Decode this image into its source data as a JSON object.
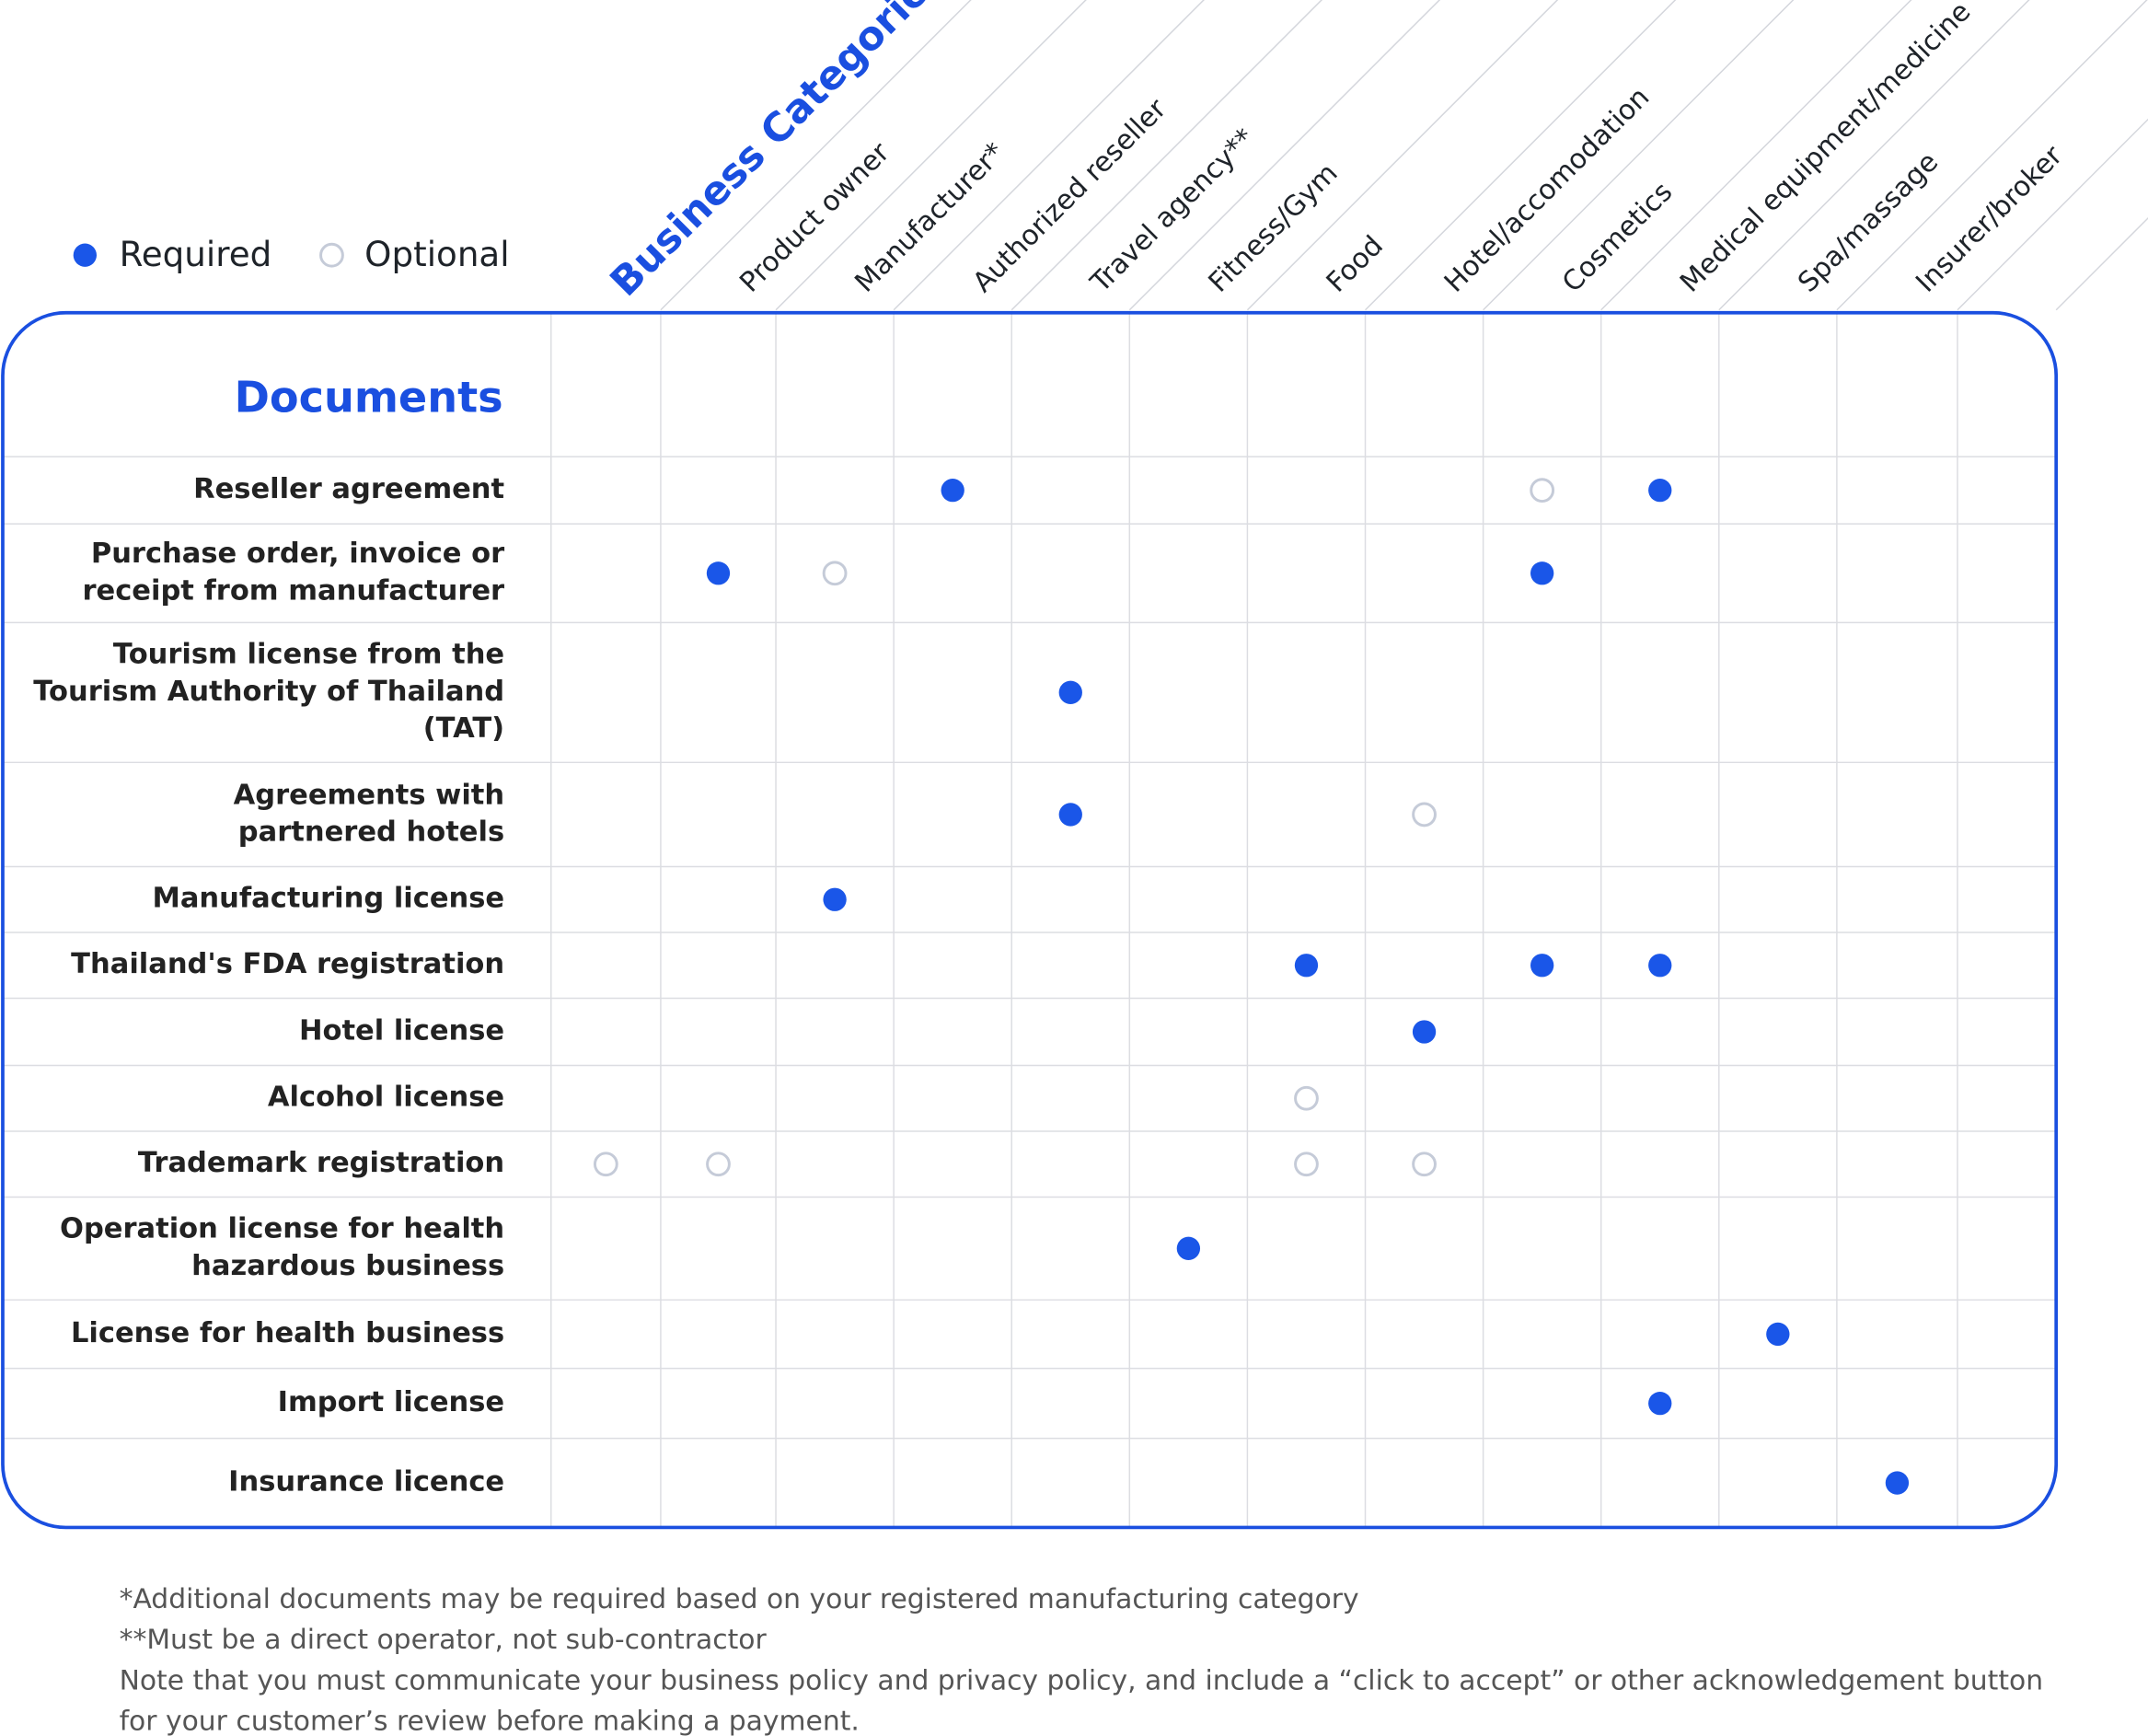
{
  "legend": {
    "required": "Required",
    "optional": "Optional"
  },
  "header": "Business Categories",
  "categories": [
    null,
    "Product owner",
    "Manufacturer*",
    "Authorized reseller",
    "Travel agency**",
    "Fitness/Gym",
    "Food",
    "Hotel/accomodation",
    "Cosmetics",
    "Medical equipment/medicine",
    "Spa/massage",
    "Insurer/broker"
  ],
  "table": {
    "title": "Documents",
    "rows": [
      {
        "label": [
          "Reseller agreement"
        ],
        "cells": [
          null,
          null,
          null,
          "required",
          null,
          null,
          null,
          null,
          "optional",
          "required",
          null,
          null
        ]
      },
      {
        "label": [
          "Purchase order, invoice or",
          "receipt from manufacturer"
        ],
        "cells": [
          null,
          "required",
          "optional",
          null,
          null,
          null,
          null,
          null,
          "required",
          null,
          null,
          null
        ]
      },
      {
        "label": [
          "Tourism license from the",
          "Tourism Authority of Thailand",
          "(TAT)"
        ],
        "cells": [
          null,
          null,
          null,
          null,
          "required",
          null,
          null,
          null,
          null,
          null,
          null,
          null
        ]
      },
      {
        "label": [
          "Agreements with",
          "partnered hotels"
        ],
        "cells": [
          null,
          null,
          null,
          null,
          "required",
          null,
          null,
          "optional",
          null,
          null,
          null,
          null
        ]
      },
      {
        "label": [
          "Manufacturing license"
        ],
        "cells": [
          null,
          null,
          "required",
          null,
          null,
          null,
          null,
          null,
          null,
          null,
          null,
          null
        ]
      },
      {
        "label": [
          "Thailand's FDA registration"
        ],
        "cells": [
          null,
          null,
          null,
          null,
          null,
          null,
          "required",
          null,
          "required",
          "required",
          null,
          null
        ]
      },
      {
        "label": [
          "Hotel license"
        ],
        "cells": [
          null,
          null,
          null,
          null,
          null,
          null,
          null,
          "required",
          null,
          null,
          null,
          null
        ]
      },
      {
        "label": [
          "Alcohol license"
        ],
        "cells": [
          null,
          null,
          null,
          null,
          null,
          null,
          "optional",
          null,
          null,
          null,
          null,
          null
        ]
      },
      {
        "label": [
          "Trademark registration"
        ],
        "cells": [
          "optional",
          "optional",
          null,
          null,
          null,
          null,
          "optional",
          "optional",
          null,
          null,
          null,
          null
        ]
      },
      {
        "label": [
          "Operation license for health",
          "hazardous business"
        ],
        "cells": [
          null,
          null,
          null,
          null,
          null,
          "required",
          null,
          null,
          null,
          null,
          null,
          null
        ]
      },
      {
        "label": [
          "License for health business"
        ],
        "cells": [
          null,
          null,
          null,
          null,
          null,
          null,
          null,
          null,
          null,
          null,
          "required",
          null
        ]
      },
      {
        "label": [
          "Import license"
        ],
        "cells": [
          null,
          null,
          null,
          null,
          null,
          null,
          null,
          null,
          null,
          "required",
          null,
          null
        ]
      },
      {
        "label": [
          "Insurance licence"
        ],
        "cells": [
          null,
          null,
          null,
          null,
          null,
          null,
          null,
          null,
          null,
          null,
          null,
          "required"
        ]
      }
    ]
  },
  "notes": [
    "*Additional documents may be required based on your registered manufacturing category",
    "**Must be a direct operator, not sub-contractor",
    "Note that you must communicate your business policy and privacy policy, and include a “click to accept” or other acknowledgement button",
    "for your customer’s review before making a payment."
  ]
}
